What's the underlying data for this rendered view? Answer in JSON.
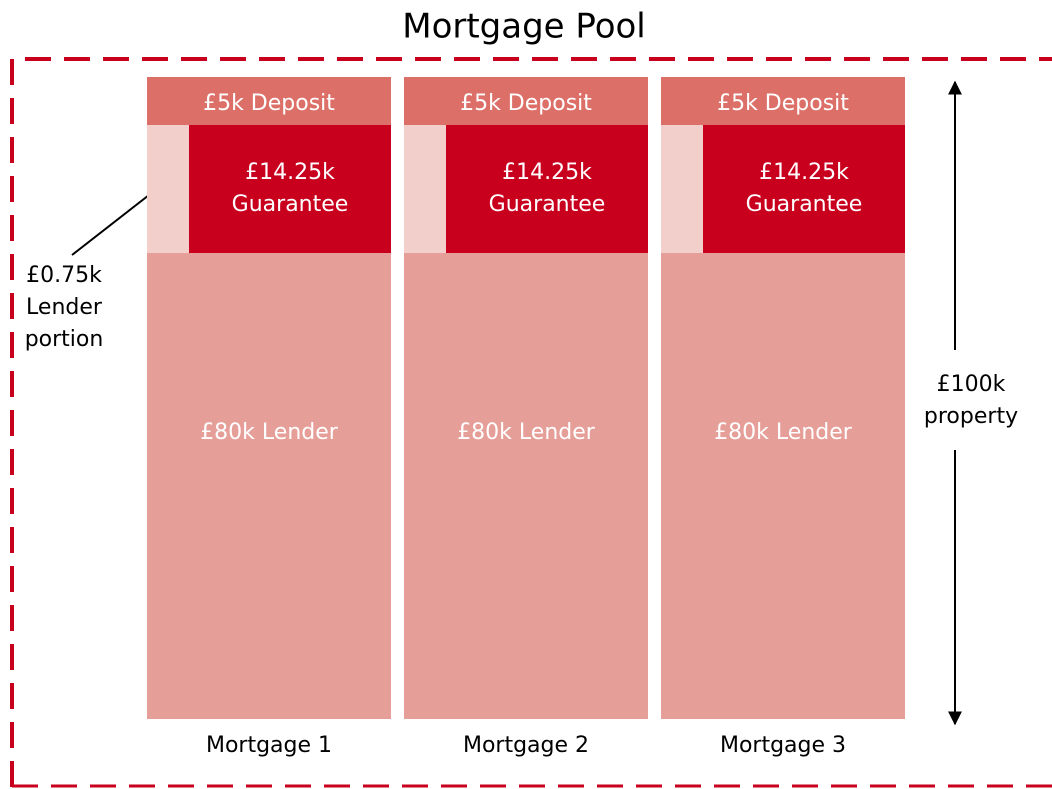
{
  "title": "Mortgage Pool",
  "mortgages": [
    {
      "deposit": "£5k Deposit",
      "guarantee": [
        "£14.25k",
        "Guarantee"
      ],
      "lender": "£80k Lender",
      "label": "Mortgage 1"
    },
    {
      "deposit": "£5k Deposit",
      "guarantee": [
        "£14.25k",
        "Guarantee"
      ],
      "lender": "£80k Lender",
      "label": "Mortgage 2"
    },
    {
      "deposit": "£5k Deposit",
      "guarantee": [
        "£14.25k",
        "Guarantee"
      ],
      "lender": "£80k Lender",
      "label": "Mortgage 3"
    }
  ],
  "annotation": [
    "£0.75k",
    "Lender",
    "portion"
  ],
  "property": [
    "£100k",
    "property"
  ]
}
